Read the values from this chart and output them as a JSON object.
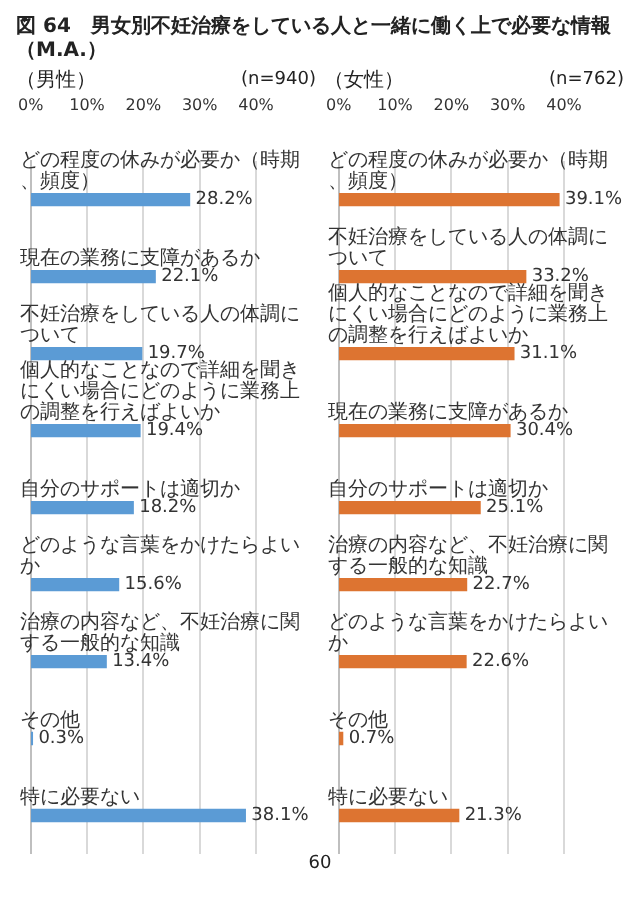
{
  "chart_data": [
    {
      "type": "bar",
      "orientation": "horizontal",
      "title": "図 64　男女別不妊治療をしている人と一緒に働く上で必要な情報（M.A.）",
      "subtitle": "（男性）",
      "annotations": [
        "(n=940)"
      ],
      "categories": [
        "どの程度の休みが必要か（時期、頻度）",
        "現在の業務に支障があるか",
        "不妊治療をしている人の体調について",
        "個人的なことなので詳細を聞きにくい場合にどのように業務上の調整を行えばよいか",
        "自分のサポートは適切か",
        "どのような言葉をかけたらよいか",
        "治療の内容など、不妊治療に関する一般的な知識",
        "その他",
        "特に必要ない"
      ],
      "values": [
        28.2,
        22.1,
        19.7,
        19.4,
        18.2,
        15.6,
        13.4,
        0.3,
        38.1
      ],
      "value_labels": [
        "28.2%",
        "22.1%",
        "19.7%",
        "19.4%",
        "18.2%",
        "15.6%",
        "13.4%",
        "0.3%",
        "38.1%"
      ],
      "color": "#5b9bd5",
      "xlim": [
        0,
        40
      ],
      "xticks": [
        {
          "value": 0,
          "label": "0%"
        },
        {
          "value": 10,
          "label": "10%"
        },
        {
          "value": 20,
          "label": "20%"
        },
        {
          "value": 30,
          "label": "30%"
        },
        {
          "value": 40,
          "label": "40%"
        }
      ],
      "grid": "x"
    },
    {
      "type": "bar",
      "orientation": "horizontal",
      "subtitle": "（女性）",
      "annotations": [
        "(n=762)",
        "60"
      ],
      "categories": [
        "どの程度の休みが必要か（時期、頻度）",
        "不妊治療をしている人の体調について",
        "個人的なことなので詳細を聞きにくい場合にどのように業務上の調整を行えばよいか",
        "現在の業務に支障があるか",
        "自分のサポートは適切か",
        "治療の内容など、不妊治療に関する一般的な知識",
        "どのような言葉をかけたらよいか",
        "その他",
        "特に必要ない"
      ],
      "values": [
        39.1,
        33.2,
        31.1,
        30.4,
        25.1,
        22.7,
        22.6,
        0.7,
        21.3
      ],
      "value_labels": [
        "39.1%",
        "33.2%",
        "31.1%",
        "30.4%",
        "25.1%",
        "22.7%",
        "22.6%",
        "0.7%",
        "21.3%"
      ],
      "color": "#dd7431",
      "xlim": [
        0,
        40
      ],
      "xticks": [
        {
          "value": 0,
          "label": "0%"
        },
        {
          "value": 10,
          "label": "10%"
        },
        {
          "value": 20,
          "label": "20%"
        },
        {
          "value": 30,
          "label": "30%"
        },
        {
          "value": 40,
          "label": "40%"
        }
      ],
      "grid": "x"
    }
  ]
}
